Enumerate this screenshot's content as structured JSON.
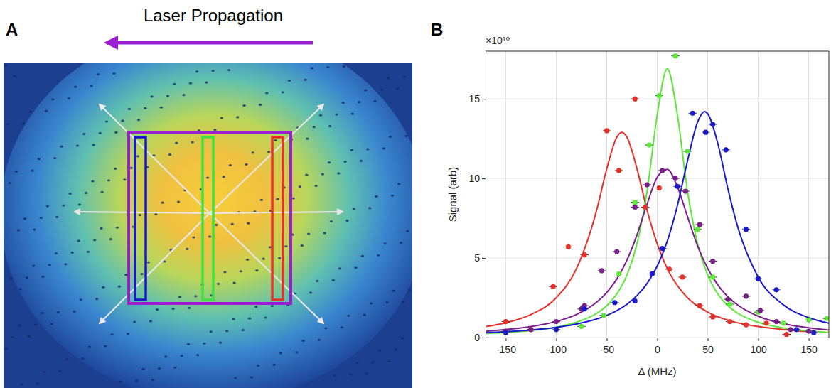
{
  "panel_a": {
    "label": "A",
    "annotation": "Laser Propagation"
  },
  "chart_data": {
    "type": "scatter",
    "panel_label": "B",
    "x_label": "Δ (MHz)",
    "y_label": "Signal (arb)",
    "y_scale_label": "×10¹⁰",
    "xlim": [
      -170,
      170
    ],
    "ylim": [
      0,
      18
    ],
    "xticks": [
      -150,
      -100,
      -50,
      0,
      50,
      100,
      150
    ],
    "yticks": [
      0,
      5,
      10,
      15
    ],
    "grid": true,
    "series": [
      {
        "type": "scatter",
        "color": "#e8302a",
        "marker": "circle",
        "x": [
          -150,
          -125,
          -103,
          -88,
          -72,
          -50,
          -38,
          -22,
          -12,
          2,
          12,
          25,
          42,
          55,
          72,
          88,
          108,
          128
        ],
        "values": [
          1.0,
          0.5,
          3.2,
          5.7,
          5.2,
          13.0,
          10.5,
          15.0,
          8.2,
          9.4,
          4.3,
          3.8,
          2.0,
          1.3,
          1.0,
          0.8,
          0.9,
          0.2
        ],
        "x_error": [
          4,
          4,
          4,
          4,
          4,
          4,
          4,
          4,
          4,
          4,
          4,
          4,
          4,
          4,
          4,
          4,
          4,
          4
        ]
      },
      {
        "type": "line",
        "color": "#e8302a",
        "line_style": "solid",
        "x": [
          -170,
          -150,
          -125,
          -100,
          -80,
          -60,
          -50,
          -40,
          -35,
          -30,
          -20,
          -10,
          0,
          10,
          25,
          50,
          75,
          100,
          125,
          150,
          170
        ],
        "values": [
          0.69,
          0.93,
          1.45,
          2.5,
          4.33,
          8.0,
          10.6,
          12.6,
          12.9,
          12.6,
          10.6,
          8.0,
          5.9,
          4.33,
          2.85,
          1.6,
          1.0,
          0.69,
          0.5,
          0.37,
          0.31
        ]
      },
      {
        "type": "scatter",
        "color": "#5ee83a",
        "marker": "circle",
        "x": [
          -150,
          -75,
          -53,
          -38,
          -22,
          -8,
          2,
          18,
          30,
          40,
          55,
          72,
          88,
          100,
          125,
          150,
          168
        ],
        "values": [
          0.3,
          0.7,
          1.4,
          4.0,
          8.5,
          12.1,
          15.2,
          17.7,
          11.7,
          6.8,
          3.8,
          2.1,
          2.6,
          1.6,
          0.9,
          1.1,
          1.2
        ],
        "x_error": [
          4,
          4,
          4,
          4,
          4,
          4,
          4,
          4,
          4,
          4,
          4,
          4,
          4,
          4,
          4,
          4,
          4
        ]
      },
      {
        "type": "line",
        "color": "#5ee83a",
        "line_style": "solid",
        "x": [
          -170,
          -150,
          -125,
          -100,
          -80,
          -60,
          -50,
          -40,
          -30,
          -20,
          -10,
          0,
          10,
          20,
          30,
          40,
          50,
          60,
          70,
          80,
          100,
          125,
          150,
          170
        ],
        "values": [
          0.25,
          0.31,
          0.44,
          0.65,
          0.96,
          1.52,
          2.0,
          2.74,
          3.92,
          5.9,
          9.2,
          14.0,
          16.9,
          14.0,
          9.2,
          5.9,
          3.92,
          2.74,
          2.0,
          1.52,
          0.96,
          0.6,
          0.41,
          0.31
        ]
      },
      {
        "type": "scatter",
        "color": "#7b1f8c",
        "marker": "circle",
        "x": [
          -150,
          -125,
          -100,
          -75,
          -72,
          -55,
          -40,
          -22,
          -10,
          5,
          18,
          28,
          42,
          55,
          70,
          88,
          102,
          118,
          132,
          150
        ],
        "values": [
          0.4,
          0.5,
          1.0,
          1.8,
          2.0,
          4.2,
          5.4,
          8.2,
          9.6,
          10.5,
          10.0,
          9.2,
          7.1,
          4.8,
          2.4,
          2.6,
          1.7,
          1.0,
          0.5,
          0.4
        ],
        "x_error": [
          4,
          4,
          4,
          4,
          4,
          4,
          4,
          4,
          4,
          4,
          4,
          4,
          4,
          4,
          4,
          4,
          4,
          4,
          4,
          4
        ]
      },
      {
        "type": "line",
        "color": "#7b1f8c",
        "line_style": "solid",
        "x": [
          -170,
          -150,
          -125,
          -100,
          -80,
          -60,
          -50,
          -40,
          -30,
          -20,
          -10,
          0,
          10,
          20,
          30,
          40,
          50,
          60,
          70,
          80,
          100,
          125,
          150,
          170
        ],
        "values": [
          0.39,
          0.5,
          0.69,
          1.01,
          1.45,
          2.22,
          2.83,
          3.68,
          4.86,
          6.46,
          8.4,
          10.07,
          10.57,
          9.48,
          7.6,
          5.76,
          4.34,
          3.31,
          2.56,
          2.03,
          1.34,
          0.87,
          0.61,
          0.47
        ]
      },
      {
        "type": "scatter",
        "color": "#1a1acc",
        "marker": "circle",
        "x": [
          -150,
          -100,
          -72,
          -42,
          -22,
          -5,
          5,
          20,
          35,
          48,
          55,
          68,
          88,
          100,
          118,
          138,
          155
        ],
        "values": [
          0.3,
          0.5,
          1.8,
          2.2,
          2.3,
          4.0,
          5.6,
          9.5,
          14.1,
          12.9,
          13.4,
          11.8,
          6.8,
          3.7,
          3.0,
          0.5,
          0.3
        ],
        "x_error": [
          4,
          4,
          4,
          4,
          4,
          4,
          4,
          4,
          4,
          4,
          4,
          4,
          4,
          4,
          4,
          4,
          4
        ]
      },
      {
        "type": "line",
        "color": "#1a1acc",
        "line_style": "solid",
        "x": [
          -170,
          -150,
          -125,
          -100,
          -80,
          -60,
          -50,
          -40,
          -30,
          -20,
          -10,
          0,
          10,
          20,
          30,
          40,
          47,
          50,
          60,
          70,
          80,
          100,
          125,
          150,
          170
        ],
        "values": [
          0.3,
          0.37,
          0.47,
          0.64,
          0.85,
          1.16,
          1.39,
          1.69,
          2.09,
          2.64,
          3.4,
          4.49,
          6.07,
          8.3,
          11.1,
          13.55,
          14.2,
          14.07,
          12.2,
          9.35,
          6.9,
          3.8,
          2.05,
          1.25,
          0.9
        ]
      }
    ]
  }
}
